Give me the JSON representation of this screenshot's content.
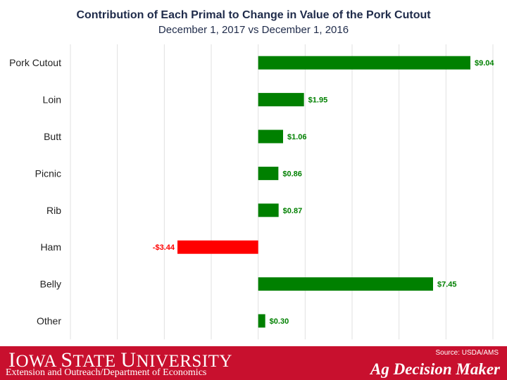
{
  "chart_data": {
    "type": "bar",
    "orientation": "horizontal",
    "title": "Contribution of Each Primal to Change in Value of the Pork Cutout",
    "subtitle": "December 1, 2017 vs December 1, 2016",
    "categories": [
      "Pork Cutout",
      "Loin",
      "Butt",
      "Picnic",
      "Rib",
      "Ham",
      "Belly",
      "Other"
    ],
    "values": [
      9.04,
      1.95,
      1.06,
      0.86,
      0.87,
      -3.44,
      7.45,
      0.3
    ],
    "labels": [
      "$9.04",
      "$1.95",
      "$1.06",
      "$0.86",
      "$0.87",
      "-$3.44",
      "$7.45",
      "$0.30"
    ],
    "xlim": [
      -8,
      10
    ],
    "grid": true,
    "colors": {
      "positive": "#008000",
      "negative": "#ff0000",
      "gridline": "#e0e0e0"
    }
  },
  "footer": {
    "university_cap_1": "I",
    "university_rest_1": "OWA ",
    "university_cap_2": "S",
    "university_rest_2": "TATE ",
    "university_cap_3": "U",
    "university_rest_3": "NIVERSITY",
    "department": "Extension and Outreach/Department of Economics",
    "source": "Source: USDA/AMS",
    "brand": "Ag Decision Maker",
    "background_color": "#c8102e"
  }
}
